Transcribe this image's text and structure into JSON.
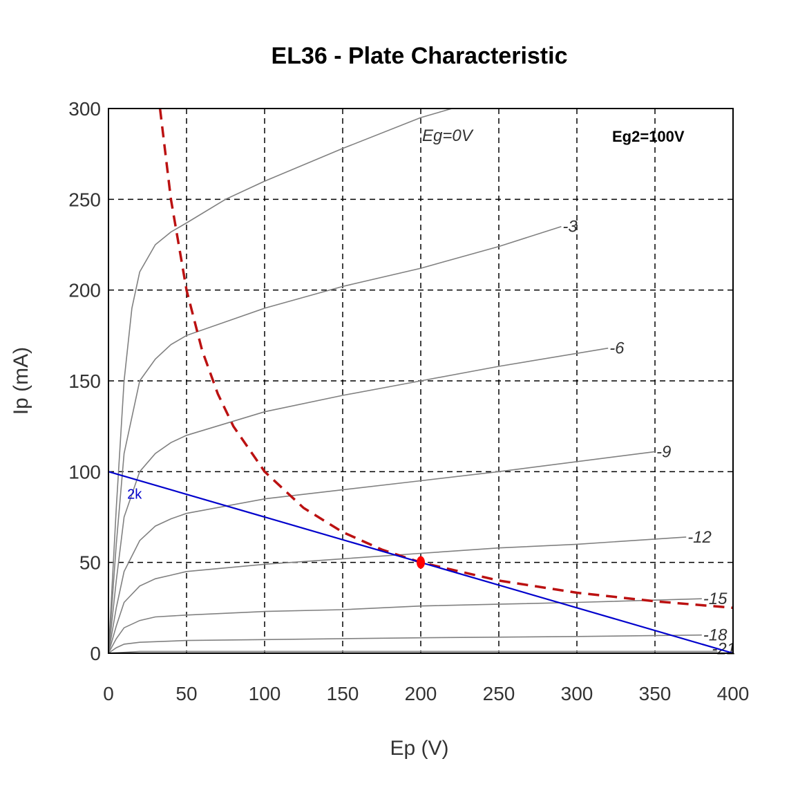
{
  "chart_data": {
    "type": "line",
    "title": "EL36 - Plate Characteristic",
    "xlabel": "Ep (V)",
    "ylabel": "Ip (mA)",
    "xlim": [
      0,
      400
    ],
    "ylim": [
      0,
      300
    ],
    "xticks": [
      0,
      50,
      100,
      150,
      200,
      250,
      300,
      350,
      400
    ],
    "yticks": [
      0,
      50,
      100,
      150,
      200,
      250,
      300
    ],
    "grid": true,
    "annotation": "Eg2=100V",
    "series": [
      {
        "name": "Eg=0V",
        "points": [
          [
            0,
            0
          ],
          [
            5,
            80
          ],
          [
            10,
            150
          ],
          [
            15,
            190
          ],
          [
            20,
            210
          ],
          [
            30,
            225
          ],
          [
            40,
            232
          ],
          [
            50,
            237
          ],
          [
            75,
            250
          ],
          [
            100,
            260
          ],
          [
            150,
            278
          ],
          [
            200,
            295
          ],
          [
            220,
            300
          ]
        ]
      },
      {
        "name": "-3",
        "points": [
          [
            0,
            0
          ],
          [
            5,
            60
          ],
          [
            10,
            110
          ],
          [
            20,
            150
          ],
          [
            30,
            162
          ],
          [
            40,
            170
          ],
          [
            50,
            175
          ],
          [
            100,
            190
          ],
          [
            150,
            202
          ],
          [
            200,
            212
          ],
          [
            250,
            224
          ],
          [
            290,
            235
          ]
        ]
      },
      {
        "name": "-6",
        "points": [
          [
            0,
            0
          ],
          [
            5,
            40
          ],
          [
            10,
            75
          ],
          [
            20,
            100
          ],
          [
            30,
            110
          ],
          [
            40,
            116
          ],
          [
            50,
            120
          ],
          [
            100,
            133
          ],
          [
            150,
            142
          ],
          [
            200,
            150
          ],
          [
            250,
            158
          ],
          [
            320,
            168
          ]
        ]
      },
      {
        "name": "-9",
        "points": [
          [
            0,
            0
          ],
          [
            5,
            25
          ],
          [
            10,
            45
          ],
          [
            20,
            62
          ],
          [
            30,
            70
          ],
          [
            40,
            74
          ],
          [
            50,
            77
          ],
          [
            100,
            85
          ],
          [
            150,
            90
          ],
          [
            200,
            95
          ],
          [
            250,
            100
          ],
          [
            350,
            111
          ]
        ]
      },
      {
        "name": "-12",
        "points": [
          [
            0,
            0
          ],
          [
            5,
            15
          ],
          [
            10,
            28
          ],
          [
            20,
            37
          ],
          [
            30,
            41
          ],
          [
            40,
            43
          ],
          [
            50,
            45
          ],
          [
            100,
            49
          ],
          [
            150,
            52
          ],
          [
            200,
            55
          ],
          [
            250,
            58
          ],
          [
            300,
            60
          ],
          [
            370,
            64
          ]
        ]
      },
      {
        "name": "-15",
        "points": [
          [
            0,
            0
          ],
          [
            5,
            8
          ],
          [
            10,
            14
          ],
          [
            20,
            18
          ],
          [
            30,
            20
          ],
          [
            50,
            21
          ],
          [
            100,
            23
          ],
          [
            150,
            24
          ],
          [
            200,
            26
          ],
          [
            250,
            27
          ],
          [
            300,
            28
          ],
          [
            380,
            30
          ]
        ]
      },
      {
        "name": "-18",
        "points": [
          [
            0,
            0
          ],
          [
            5,
            3
          ],
          [
            10,
            5
          ],
          [
            20,
            6
          ],
          [
            50,
            7
          ],
          [
            100,
            7.5
          ],
          [
            200,
            8.5
          ],
          [
            300,
            9.2
          ],
          [
            380,
            10
          ]
        ]
      },
      {
        "name": "-21",
        "points": [
          [
            0,
            0
          ],
          [
            20,
            1
          ],
          [
            100,
            1
          ],
          [
            200,
            1
          ],
          [
            390,
            1
          ]
        ]
      }
    ],
    "load_line": {
      "name": "2k",
      "points": [
        [
          0,
          100
        ],
        [
          400,
          0
        ]
      ]
    },
    "max_dissipation": {
      "points": [
        [
          33,
          300
        ],
        [
          40,
          250
        ],
        [
          50,
          200
        ],
        [
          60,
          166.7
        ],
        [
          70,
          142.9
        ],
        [
          80,
          125
        ],
        [
          100,
          100
        ],
        [
          125,
          80
        ],
        [
          150,
          66.7
        ],
        [
          175,
          57.1
        ],
        [
          200,
          50
        ],
        [
          250,
          40
        ],
        [
          300,
          33.3
        ],
        [
          350,
          28.6
        ],
        [
          400,
          25
        ]
      ]
    },
    "operating_point": {
      "x": 200,
      "y": 50
    }
  },
  "colors": {
    "curves": "#808080",
    "load_line": "#0000cc",
    "dissipation": "#bb1111",
    "operating_point": "#ff0000",
    "grid": "#000000"
  }
}
